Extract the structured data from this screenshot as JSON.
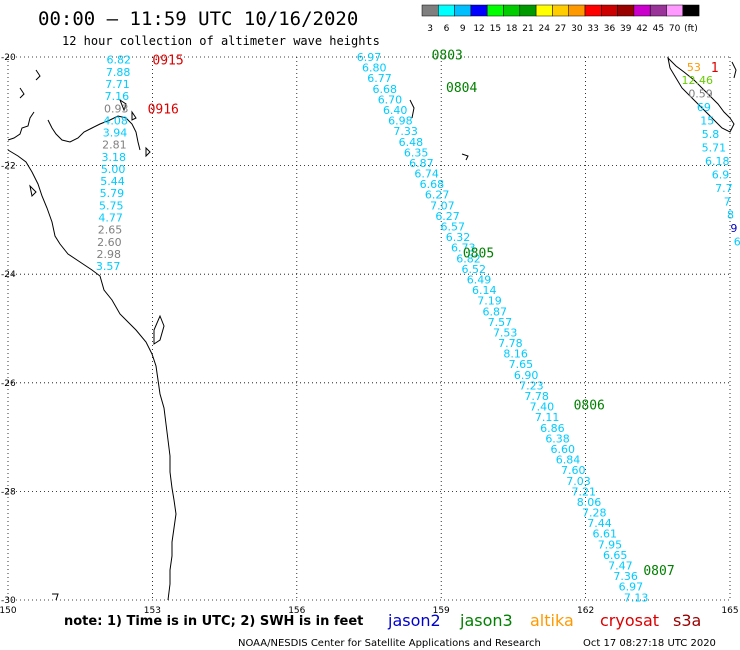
{
  "header": {
    "title": "00:00 – 11:59 UTC 10/16/2020",
    "subtitle": "12 hour collection of altimeter wave heights"
  },
  "colorbar": {
    "labels": [
      "3",
      "6",
      "9",
      "12",
      "15",
      "18",
      "21",
      "24",
      "27",
      "30",
      "33",
      "36",
      "39",
      "42",
      "45",
      "70",
      "(ft)"
    ],
    "colors": [
      "#7f7f7f",
      "#00ffff",
      "#00bfff",
      "#0000ff",
      "#00ff00",
      "#00cc00",
      "#009900",
      "#ffff00",
      "#ffcc00",
      "#ff9900",
      "#ff0000",
      "#cc0000",
      "#990000",
      "#cc00cc",
      "#993399",
      "#ff99ff",
      "#000000"
    ]
  },
  "footer": {
    "note": "note: 1) Time is in UTC; 2) SWH is in feet",
    "missions": [
      {
        "name": "jason2",
        "color": "#0000cc"
      },
      {
        "name": "jason3",
        "color": "#008000"
      },
      {
        "name": "altika",
        "color": "#ff9900"
      },
      {
        "name": "cryosat",
        "color": "#dd0000"
      },
      {
        "name": "s3a",
        "color": "#990000"
      }
    ],
    "credit": "NOAA/NESDIS Center for Satellite Applications and Research",
    "timestamp": "Oct 17 08:27:18 UTC 2020"
  },
  "chart_data": {
    "type": "scatter",
    "xlim": [
      150,
      165
    ],
    "ylim": [
      -30,
      -20
    ],
    "x_ticks": [
      "150",
      "153",
      "156",
      "159",
      "162",
      "165"
    ],
    "y_ticks": [
      "-20",
      "-22",
      "-24",
      "-26",
      "-28",
      "-30"
    ],
    "grid": true,
    "passes": [
      {
        "label": "0915",
        "color": "#dd0000",
        "lon": 153.0,
        "lat": -20.05
      },
      {
        "label": "0916",
        "color": "#dd0000",
        "lon": 152.9,
        "lat": -20.95
      },
      {
        "label": "0803",
        "color": "#008000",
        "lon": 158.8,
        "lat": -19.95
      },
      {
        "label": "0804",
        "color": "#008000",
        "lon": 159.1,
        "lat": -20.55
      },
      {
        "label": "0805",
        "color": "#008000",
        "lon": 159.45,
        "lat": -23.6
      },
      {
        "label": "0806",
        "color": "#008000",
        "lon": 161.75,
        "lat": -26.4
      },
      {
        "label": "0807",
        "color": "#008000",
        "lon": 163.2,
        "lat": -29.45
      },
      {
        "label": "1",
        "color": "#dd0000",
        "lon": 164.6,
        "lat": -20.18
      }
    ],
    "tracks": [
      {
        "name": "0915-0916",
        "lon_start": 152.3,
        "lat_start": -20.05,
        "lon_end": 152.08,
        "lat_end": -23.85,
        "values": [
          "6.82",
          "7.88",
          "7.71",
          "7.16",
          "0.93",
          "4.08",
          "3.94",
          "2.81",
          "3.18",
          "5.00",
          "5.44",
          "5.79",
          "5.75",
          "4.77",
          "2.65",
          "2.60",
          "2.98",
          "3.57"
        ],
        "colors": [
          "#00ccff",
          "#00ccff",
          "#00ccff",
          "#00ccff",
          "#808080",
          "#00ccff",
          "#00ccff",
          "#808080",
          "#00ccff",
          "#00ccff",
          "#00ccff",
          "#00ccff",
          "#00ccff",
          "#00ccff",
          "#808080",
          "#808080",
          "#808080",
          "#00ccff"
        ]
      },
      {
        "name": "0803-0807",
        "lon_start": 157.5,
        "lat_start": -20.0,
        "lon_end": 163.05,
        "lat_end": -29.95,
        "values": [
          "6.97",
          "6.80",
          "6.77",
          "6.68",
          "6.70",
          "6.40",
          "6.98",
          "7.33",
          "6.48",
          "6.35",
          "6.87",
          "6.74",
          "6.68",
          "6.27",
          "7.07",
          "6.27",
          "6.57",
          "6.32",
          "6.73",
          "6.82",
          "6.52",
          "6.49",
          "6.14",
          "7.19",
          "6.87",
          "7.57",
          "7.53",
          "7.78",
          "8.16",
          "7.65",
          "6.90",
          "7.23",
          "7.78",
          "7.40",
          "7.11",
          "6.86",
          "6.38",
          "6.60",
          "6.84",
          "7.60",
          "7.03",
          "7.21",
          "8.06",
          "7.28",
          "7.44",
          "6.61",
          "7.95",
          "6.65",
          "7.47",
          "7.36",
          "6.97",
          "7.13"
        ],
        "colors": [
          "#00ccff"
        ]
      },
      {
        "name": "east-track",
        "lon_start": 164.25,
        "lat_start": -20.18,
        "lon_end": 165.15,
        "lat_end": -23.4,
        "values": [
          "53",
          "12.46",
          "0.59",
          "69",
          "15",
          "5.8",
          "5.71",
          "6.18",
          "6.9",
          "7.7",
          "7",
          "8",
          "9",
          "6"
        ],
        "colors": [
          "#ff9900",
          "#66cc00",
          "#808080",
          "#00ccff",
          "#00ccff",
          "#00ccff",
          "#00ccff",
          "#00ccff",
          "#00ccff",
          "#00ccff",
          "#00ccff",
          "#00ccff",
          "#0000cc",
          "#00ccff"
        ]
      }
    ]
  }
}
